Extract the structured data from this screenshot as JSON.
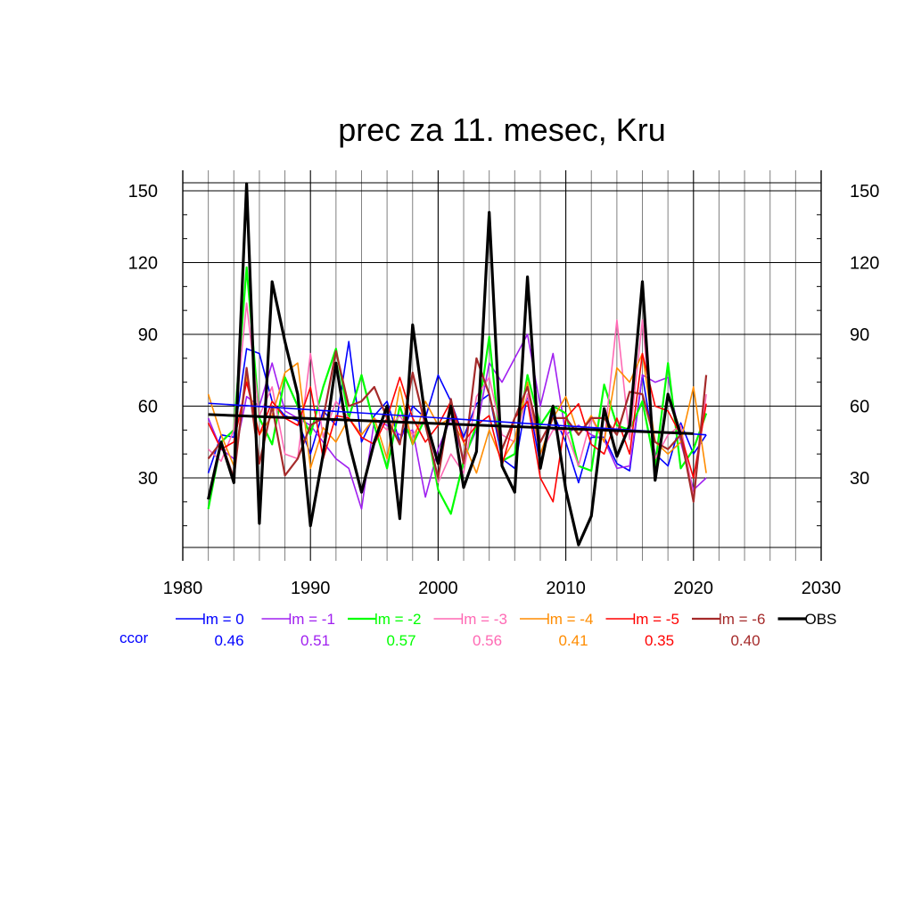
{
  "chart_data": {
    "type": "line",
    "title": "prec za 11. mesec, Kru",
    "xlabel": "",
    "ylabel": "",
    "xlim": [
      1980,
      2030
    ],
    "ylim": [
      0,
      155
    ],
    "x_ticks": [
      1980,
      1990,
      2000,
      2010,
      2020,
      2030
    ],
    "y_ticks": [
      30,
      60,
      90,
      120,
      150
    ],
    "grid": true,
    "legend_position": "bottom",
    "ccor_label": "ccor",
    "x": [
      1982,
      1983,
      1984,
      1985,
      1986,
      1987,
      1988,
      1989,
      1990,
      1991,
      1992,
      1993,
      1994,
      1995,
      1996,
      1997,
      1998,
      1999,
      2000,
      2001,
      2002,
      2003,
      2004,
      2005,
      2006,
      2007,
      2008,
      2009,
      2010,
      2011,
      2012,
      2013,
      2014,
      2015,
      2016,
      2017,
      2018,
      2019,
      2020,
      2021
    ],
    "series": [
      {
        "name": "lm = 0",
        "color": "#0000ff",
        "ccor": "0.46",
        "stroke": 1.6,
        "values": [
          32,
          48,
          47,
          84,
          82,
          62,
          56,
          54,
          40,
          58,
          52,
          87,
          45,
          56,
          62,
          45,
          60,
          55,
          73,
          62,
          47,
          61,
          65,
          38,
          34,
          65,
          35,
          57,
          45,
          28,
          47,
          47,
          36,
          33,
          73,
          40,
          35,
          53,
          40,
          48
        ]
      },
      {
        "name": "lm = -1",
        "color": "#a020f0",
        "ccor": "0.51",
        "stroke": 1.6,
        "values": [
          55,
          42,
          38,
          64,
          60,
          78,
          58,
          55,
          52,
          45,
          38,
          34,
          17,
          54,
          52,
          48,
          50,
          22,
          42,
          55,
          38,
          50,
          78,
          70,
          80,
          90,
          60,
          82,
          48,
          52,
          48,
          46,
          34,
          35,
          73,
          70,
          72,
          45,
          25,
          30
        ]
      },
      {
        "name": "lm = -2",
        "color": "#00ff00",
        "ccor": "0.57",
        "stroke": 2.2,
        "values": [
          17,
          45,
          50,
          118,
          55,
          44,
          72,
          60,
          48,
          68,
          84,
          55,
          73,
          52,
          34,
          60,
          44,
          55,
          25,
          15,
          37,
          52,
          89,
          37,
          40,
          73,
          52,
          60,
          57,
          35,
          33,
          69,
          52,
          50,
          62,
          35,
          78,
          34,
          42,
          57
        ]
      },
      {
        "name": "lm = -3",
        "color": "#ff69b4",
        "ccor": "0.56",
        "stroke": 1.6,
        "values": [
          42,
          37,
          50,
          103,
          56,
          68,
          40,
          38,
          82,
          47,
          62,
          55,
          48,
          55,
          50,
          56,
          48,
          55,
          28,
          40,
          32,
          64,
          72,
          48,
          45,
          65,
          40,
          50,
          50,
          35,
          55,
          45,
          96,
          46,
          96,
          38,
          48,
          52,
          22,
          65
        ]
      },
      {
        "name": "lm = -4",
        "color": "#ff8c00",
        "ccor": "0.41",
        "stroke": 1.6,
        "values": [
          65,
          48,
          35,
          72,
          48,
          56,
          74,
          78,
          34,
          51,
          45,
          55,
          48,
          55,
          38,
          68,
          44,
          62,
          52,
          55,
          45,
          32,
          50,
          37,
          46,
          70,
          40,
          55,
          64,
          48,
          56,
          45,
          76,
          70,
          82,
          45,
          40,
          45,
          68,
          32
        ]
      },
      {
        "name": "lm = -5",
        "color": "#ff0000",
        "ccor": "0.35",
        "stroke": 1.6,
        "values": [
          53,
          42,
          45,
          70,
          48,
          62,
          55,
          52,
          68,
          38,
          56,
          55,
          47,
          44,
          55,
          72,
          55,
          45,
          52,
          62,
          45,
          52,
          56,
          35,
          55,
          62,
          30,
          20,
          55,
          61,
          44,
          40,
          55,
          40,
          82,
          60,
          58,
          48,
          30,
          61
        ]
      },
      {
        "name": "lm = -6",
        "color": "#a52a2a",
        "ccor": "0.40",
        "stroke": 2.2,
        "values": [
          38,
          45,
          30,
          76,
          36,
          60,
          31,
          38,
          52,
          55,
          83,
          60,
          62,
          68,
          55,
          44,
          74,
          52,
          30,
          63,
          36,
          80,
          65,
          42,
          55,
          68,
          45,
          55,
          55,
          48,
          55,
          55,
          48,
          66,
          65,
          45,
          42,
          48,
          20,
          73
        ]
      },
      {
        "name": "OBS",
        "color": "#000000",
        "stroke": 3.2,
        "values": [
          21,
          45,
          28,
          153,
          11,
          112,
          87,
          65,
          10,
          40,
          78,
          45,
          24,
          45,
          60,
          13,
          94,
          55,
          36,
          60,
          26,
          41,
          141,
          35,
          24,
          114,
          34,
          60,
          25,
          2,
          14,
          59,
          39,
          52,
          112,
          29,
          65,
          48,
          null,
          null
        ],
        "trend": {
          "x": [
            1982,
            2020
          ],
          "values": [
            56.5,
            48.5
          ]
        }
      }
    ],
    "model_trend": {
      "color": "#0000ff",
      "x": [
        1982,
        2021
      ],
      "values": [
        61.2,
        48
      ]
    }
  }
}
